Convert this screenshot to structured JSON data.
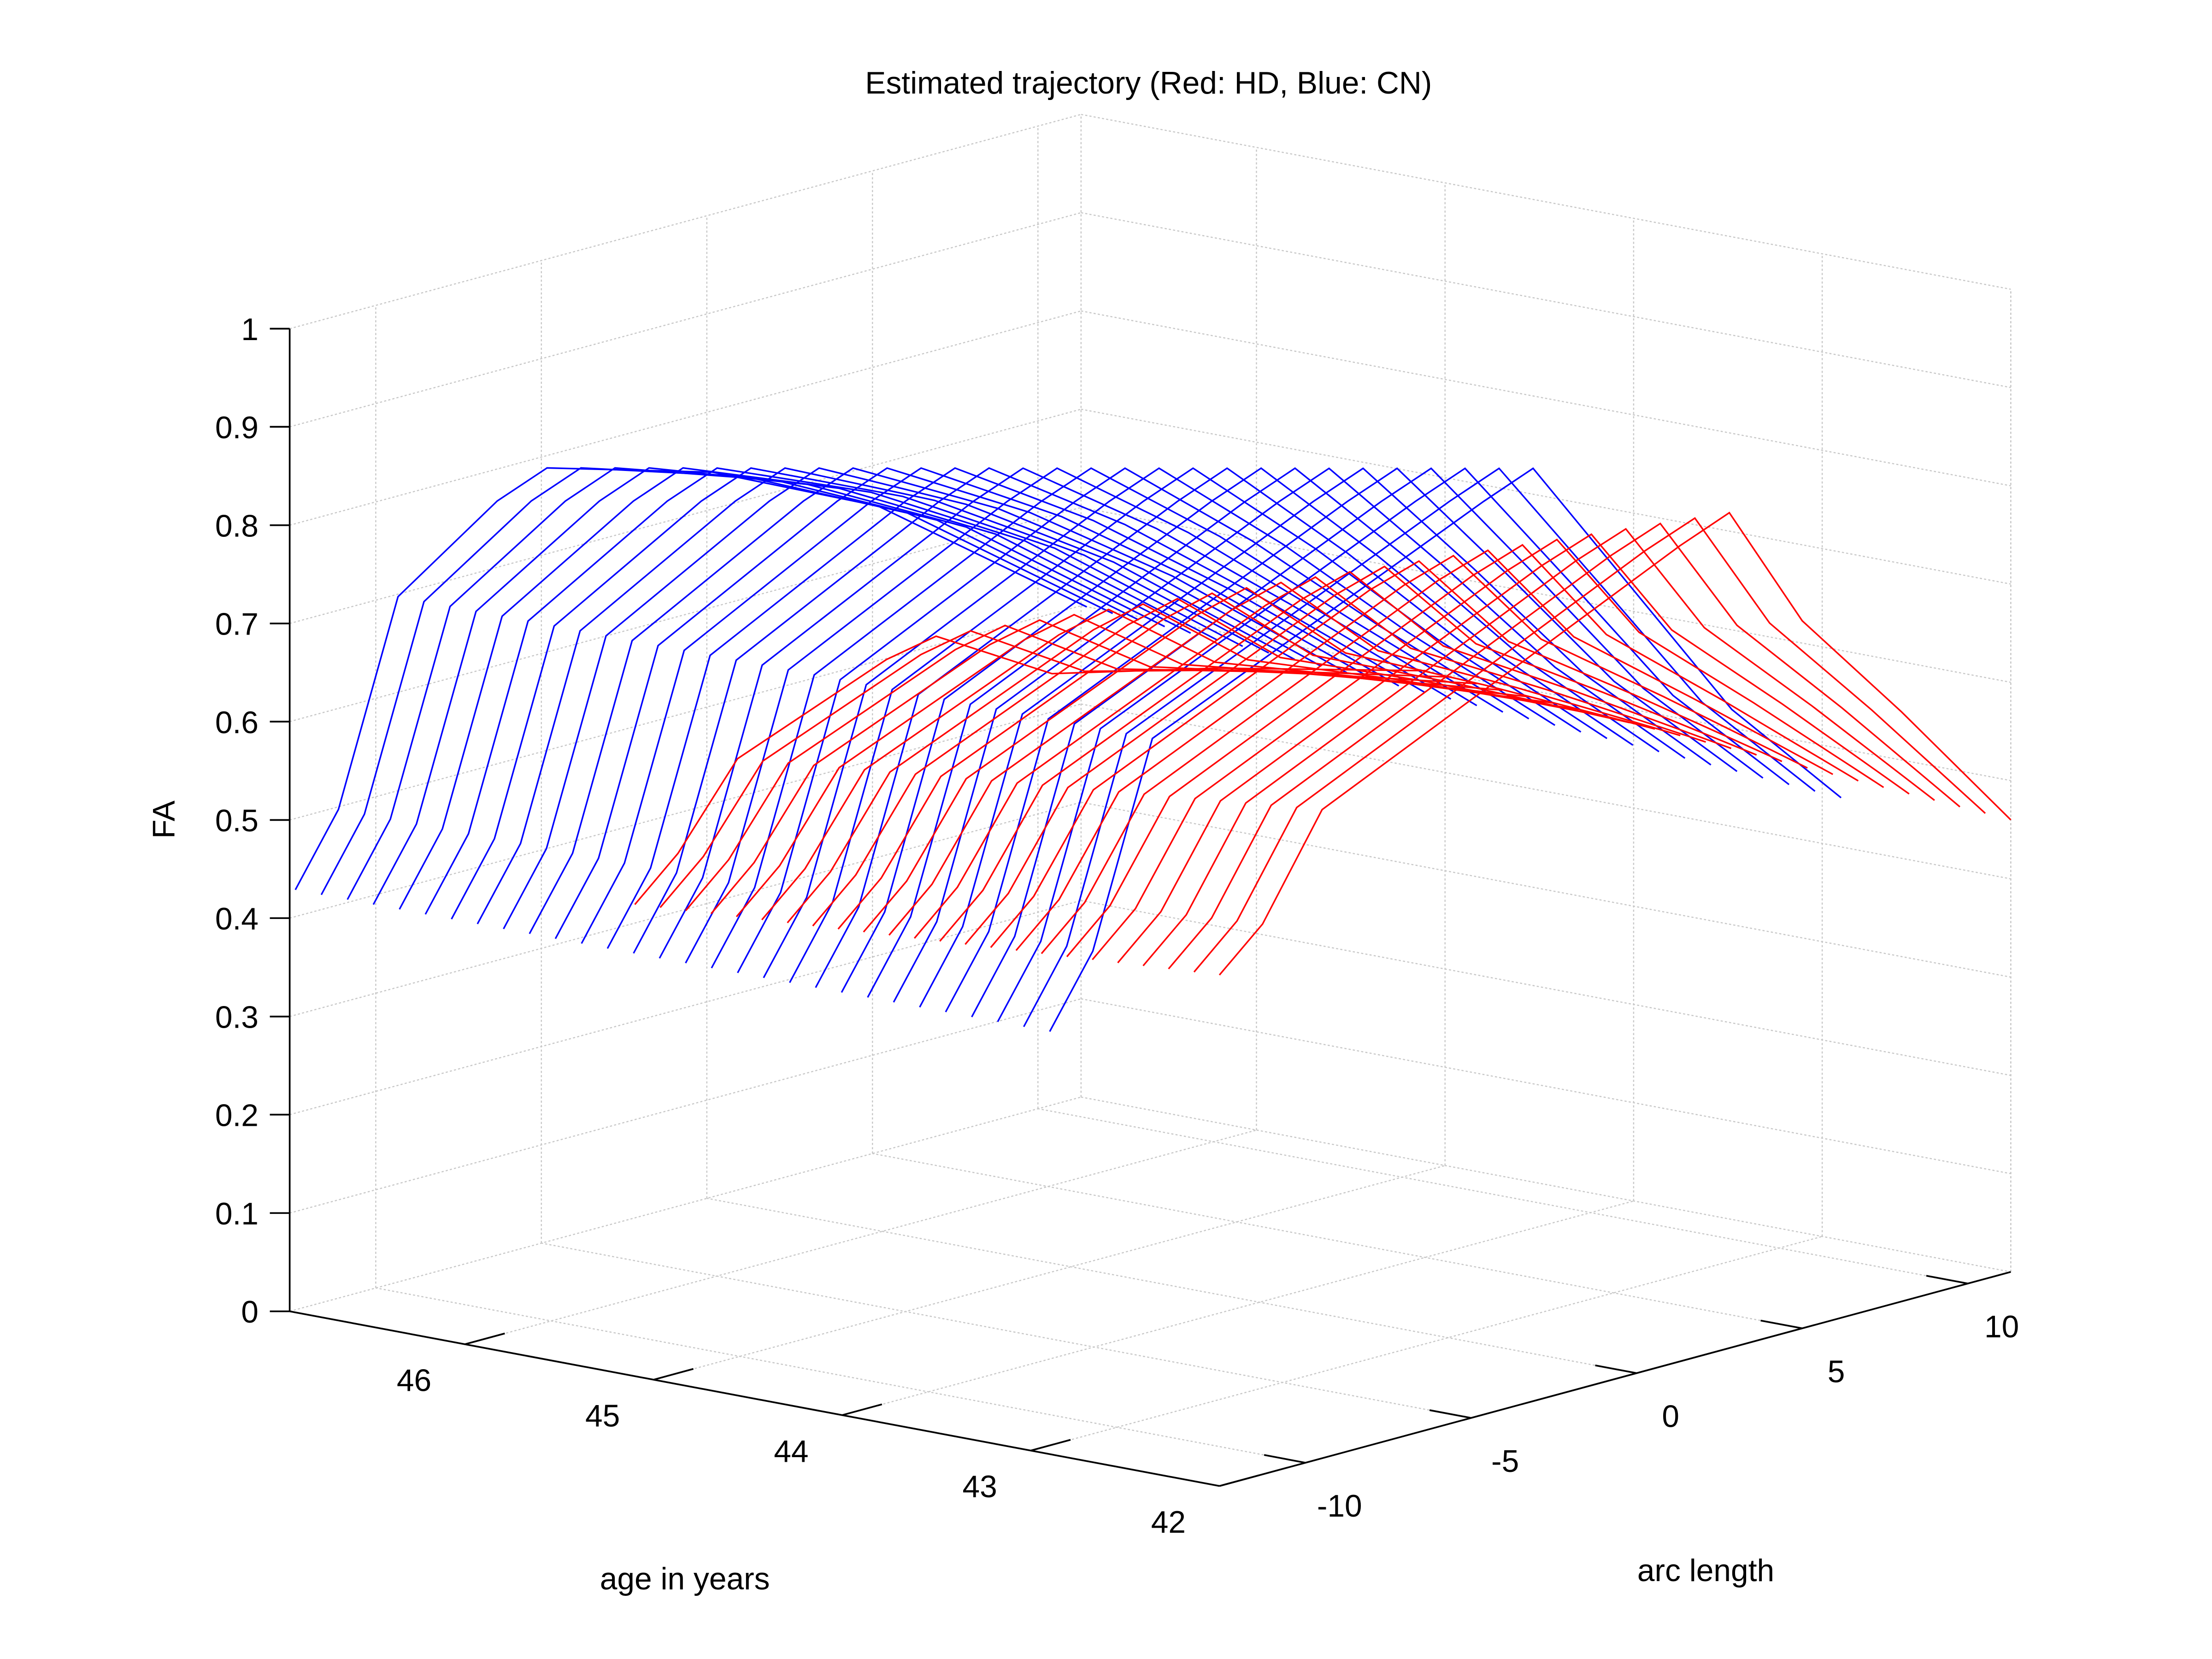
{
  "chart_data": {
    "type": "line",
    "title": "Estimated trajectory (Red: HD, Blue: CN)",
    "xlabel": "age in years",
    "ylabel": "arc length",
    "zlabel": "FA",
    "xlim": [
      42,
      46.93
    ],
    "ylim": [
      -12.6,
      11.3
    ],
    "zlim": [
      0,
      1
    ],
    "grid": true,
    "x_ticks": [
      "42",
      "43",
      "44",
      "45",
      "46"
    ],
    "x_tick_values": [
      42,
      43,
      44,
      45,
      46
    ],
    "y_ticks": [
      "-10",
      "-5",
      "0",
      "5",
      "10"
    ],
    "y_tick_values": [
      -10,
      -5,
      0,
      5,
      10
    ],
    "z_ticks": [
      "0",
      "0.1",
      "0.2",
      "0.3",
      "0.4",
      "0.5",
      "0.6",
      "0.7",
      "0.8",
      "0.9",
      "1"
    ],
    "z_tick_values": [
      0,
      0.1,
      0.2,
      0.3,
      0.4,
      0.5,
      0.6,
      0.7,
      0.8,
      0.9,
      1
    ],
    "series": [
      {
        "name": "CN",
        "color": "#0000ff",
        "age_range": [
          46.9,
          42.9
        ],
        "curve_count": 30,
        "profiles": [
          {
            "age": 46.9,
            "arc": [
              -12.6,
              -11.3,
              -9.5,
              -6.5,
              -5,
              0,
              5,
              11.3
            ],
            "fa": [
              0.43,
              0.5,
              0.7,
              0.77,
              0.79,
              0.74,
              0.66,
              0.5
            ]
          },
          {
            "age": 42.9,
            "arc": [
              -12.6,
              -11.3,
              -9.5,
              0.5,
              2,
              5,
              8,
              11.3
            ],
            "fa": [
              0.43,
              0.5,
              0.7,
              0.85,
              0.87,
              0.72,
              0.57,
              0.45
            ]
          }
        ]
      },
      {
        "name": "HD",
        "color": "#ff0000",
        "age_range": [
          45.1,
          42
        ],
        "curve_count": 24,
        "profiles": [
          {
            "age": 45.1,
            "arc": [
              -12.6,
              -11.3,
              -9.5,
              -5,
              -3.5,
              0,
              5,
              11.3
            ],
            "fa": [
              0.48,
              0.52,
              0.6,
              0.66,
              0.67,
              0.6,
              0.56,
              0.5
            ]
          },
          {
            "age": 42,
            "arc": [
              -12.6,
              -11.3,
              -9.5,
              1.3,
              2.8,
              5,
              8,
              11.3
            ],
            "fa": [
              0.52,
              0.56,
              0.66,
              0.83,
              0.85,
              0.72,
              0.6,
              0.46
            ]
          }
        ]
      }
    ]
  }
}
